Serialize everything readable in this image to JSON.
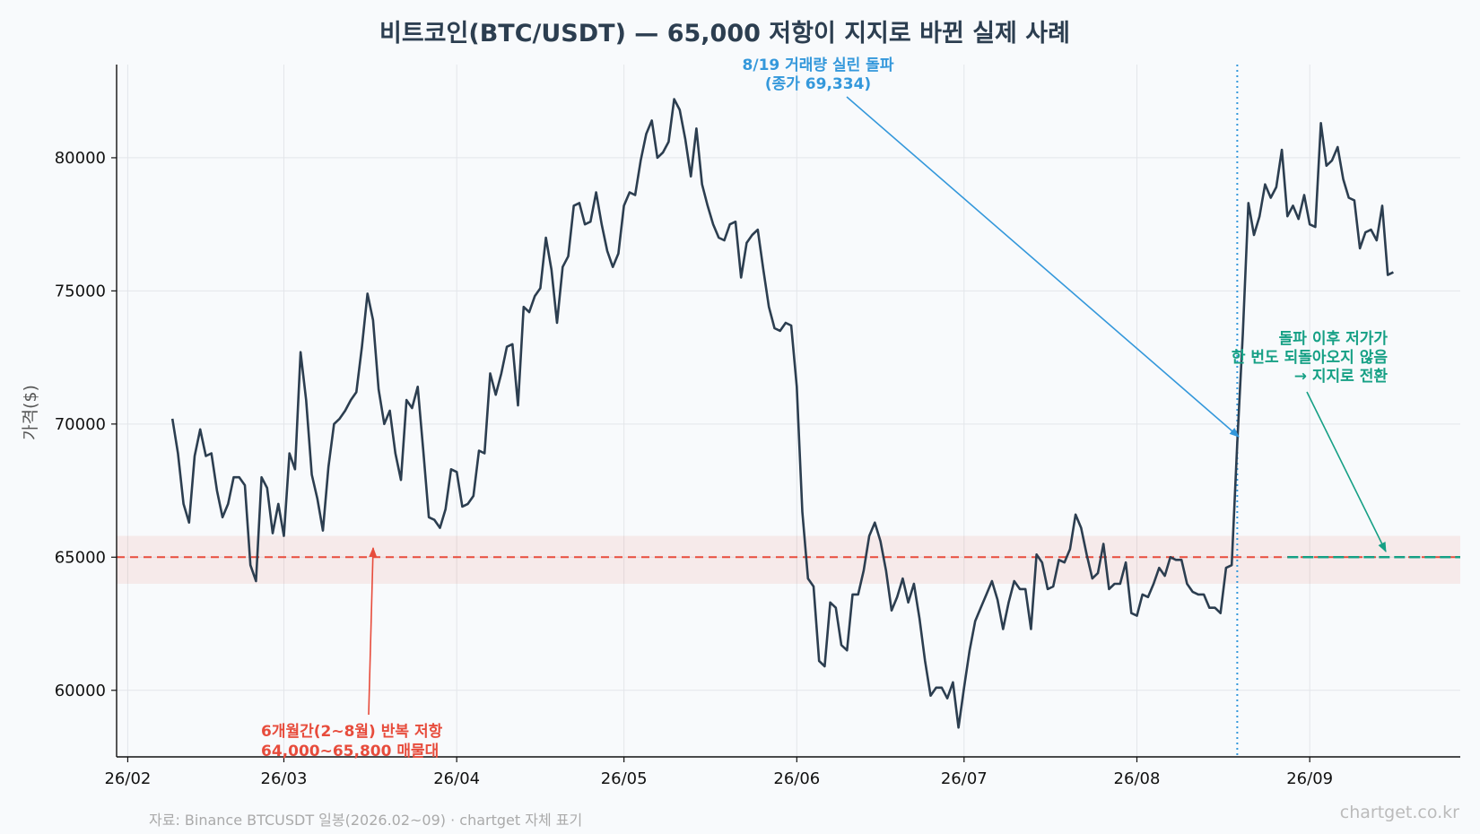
{
  "chart_data": {
    "type": "line",
    "title": "비트코인(BTC/USDT) — 65,000 저항이 지지로 바뀐 실제 사례",
    "xlabel": "",
    "ylabel": "가격($)",
    "xlim": [
      "2026-01-30",
      "2026-09-28"
    ],
    "ylim": [
      57500,
      83500
    ],
    "yticks": [
      60000,
      65000,
      70000,
      75000,
      80000
    ],
    "xticks": [
      {
        "date": "2026-02-01",
        "label": "26/02"
      },
      {
        "date": "2026-03-01",
        "label": "26/03"
      },
      {
        "date": "2026-04-01",
        "label": "26/04"
      },
      {
        "date": "2026-05-01",
        "label": "26/05"
      },
      {
        "date": "2026-06-01",
        "label": "26/06"
      },
      {
        "date": "2026-07-01",
        "label": "26/07"
      },
      {
        "date": "2026-08-01",
        "label": "26/08"
      },
      {
        "date": "2026-09-01",
        "label": "26/09"
      }
    ],
    "grid": true,
    "series": [
      {
        "color": "#2c3e50",
        "start_date": "2026-02-09",
        "values": [
          70200,
          68900,
          67000,
          66300,
          68800,
          69800,
          68800,
          68900,
          67500,
          66500,
          67000,
          68000,
          68000,
          67700,
          64700,
          64100,
          68000,
          67600,
          65900,
          67000,
          65800,
          68900,
          68300,
          72700,
          70900,
          68100,
          67200,
          66000,
          68400,
          70000,
          70200,
          70500,
          70900,
          71200,
          72900,
          74900,
          73900,
          71300,
          70000,
          70500,
          68900,
          67900,
          70900,
          70600,
          71400,
          69000,
          66500,
          66400,
          66100,
          66800,
          68300,
          68200,
          66900,
          67000,
          67300,
          69000,
          68900,
          71900,
          71100,
          71900,
          72900,
          73000,
          70700,
          74400,
          74200,
          74800,
          75100,
          77000,
          75800,
          73800,
          75900,
          76300,
          78200,
          78300,
          77500,
          77600,
          78700,
          77500,
          76500,
          75900,
          76400,
          78200,
          78700,
          78600,
          79900,
          80900,
          81400,
          80000,
          80200,
          80600,
          82200,
          81800,
          80700,
          79300,
          81100,
          79000,
          78200,
          77500,
          77000,
          76900,
          77500,
          77600,
          75500,
          76800,
          77100,
          77300,
          75800,
          74400,
          73600,
          73500,
          73800,
          73700,
          71400,
          66700,
          64200,
          63900,
          61100,
          60900,
          63300,
          63100,
          61700,
          61500,
          63600,
          63600,
          64500,
          65800,
          66300,
          65600,
          64500,
          63000,
          63500,
          64200,
          63300,
          64000,
          62700,
          61100,
          59800,
          60100,
          60100,
          59700,
          60300,
          58600,
          60100,
          61500,
          62600,
          63100,
          63600,
          64100,
          63400,
          62300,
          63300,
          64100,
          63800,
          63800,
          62300,
          65100,
          64800,
          63800,
          63900,
          64900,
          64800,
          65300,
          66600,
          66100,
          65100,
          64200,
          64400,
          65500,
          63800,
          64000,
          64000,
          64800,
          62900,
          62800,
          63600,
          63500,
          64000,
          64600,
          64300,
          65000,
          64900,
          64900,
          64000,
          63700,
          63600,
          63600,
          63100,
          63100,
          62900,
          64600,
          64700,
          69300,
          73400,
          78300,
          77100,
          77800,
          79000,
          78500,
          78900,
          80300,
          77800,
          78200,
          77700,
          78600,
          77500,
          77400,
          81300,
          79700,
          79900,
          80400,
          79200,
          78500,
          78400,
          76600,
          77200,
          77300,
          76900,
          78200,
          75600,
          75700
        ]
      }
    ],
    "resistance_line": {
      "value": 65000,
      "color": "#e74c3c"
    },
    "resistance_band": [
      64000,
      65800
    ],
    "support_line": {
      "value": 65000,
      "start_date": "2026-08-28",
      "color": "#16a085"
    },
    "breakout_marker": {
      "date": "2026-08-19",
      "color": "#3498db"
    },
    "annotations": {
      "resistance_line1": "6개월간(2~8월) 반복 저항",
      "resistance_line2": "64,000~65,800 매물대",
      "breakout_line1": "8/19 거래량 실린 돌파",
      "breakout_line2": "(종가 69,334)",
      "support_line1": "돌파 이후 저가가",
      "support_line2": "한 번도 되돌아오지 않음",
      "support_line3": "→ 지지로 전환"
    },
    "annotation_colors": {
      "resistance": "#e74c3c",
      "breakout": "#3498db",
      "support": "#16a085"
    }
  },
  "footer": {
    "source": "자료: Binance BTCUSDT 일봉(2026.02~09) · chartget 자체 표기",
    "brand": "chartget.co.kr"
  }
}
